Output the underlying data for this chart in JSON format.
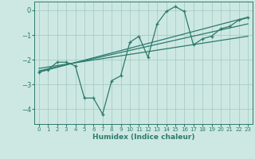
{
  "xlabel": "Humidex (Indice chaleur)",
  "background_color": "#cde8e2",
  "grid_color": "#a8ccc6",
  "line_color": "#2d7a6e",
  "xlim": [
    -0.5,
    23.5
  ],
  "ylim": [
    -4.6,
    0.35
  ],
  "xticks": [
    0,
    1,
    2,
    3,
    4,
    5,
    6,
    7,
    8,
    9,
    10,
    11,
    12,
    13,
    14,
    15,
    16,
    17,
    18,
    19,
    20,
    21,
    22,
    23
  ],
  "yticks": [
    0,
    -1,
    -2,
    -3,
    -4
  ],
  "main_x": [
    0,
    1,
    2,
    3,
    4,
    5,
    6,
    7,
    8,
    9,
    10,
    11,
    12,
    13,
    14,
    15,
    16,
    17,
    18,
    19,
    20,
    21,
    22,
    23
  ],
  "main_y": [
    -2.5,
    -2.4,
    -2.1,
    -2.1,
    -2.25,
    -3.55,
    -3.55,
    -4.2,
    -2.85,
    -2.65,
    -1.3,
    -1.05,
    -1.9,
    -0.55,
    -0.05,
    0.15,
    -0.05,
    -1.4,
    -1.15,
    -1.05,
    -0.75,
    -0.65,
    -0.4,
    -0.3
  ],
  "trend1_x": [
    0,
    23
  ],
  "trend1_y": [
    -2.5,
    -0.28
  ],
  "trend2_x": [
    0,
    23
  ],
  "trend2_y": [
    -2.45,
    -0.55
  ],
  "trend3_x": [
    0,
    23
  ],
  "trend3_y": [
    -2.35,
    -1.05
  ]
}
